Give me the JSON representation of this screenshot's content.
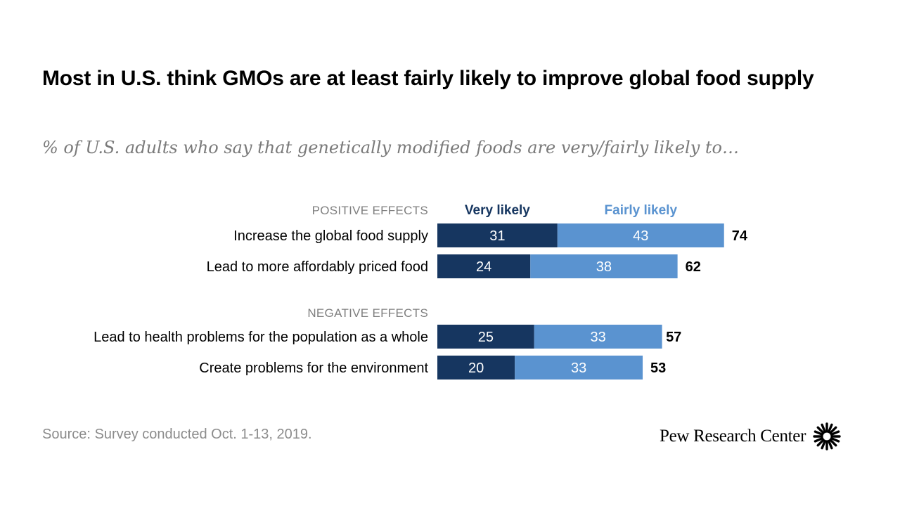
{
  "title": "Most in U.S. think GMOs are at least fairly likely to improve global food supply",
  "subtitle": "% of U.S. adults who say that genetically modified foods are very/fairly likely to…",
  "source": "Source: Survey conducted Oct. 1-13, 2019.",
  "logo": {
    "text": "Pew Research Center",
    "icon": "pew-sunburst-icon"
  },
  "colors": {
    "very": "#163660",
    "fairly": "#5a93d0",
    "section": "#7f7f7f",
    "label": "#000000"
  },
  "chart_data": {
    "type": "bar",
    "orientation": "horizontal",
    "stacked": true,
    "series": [
      {
        "name": "Very likely"
      },
      {
        "name": "Fairly likely"
      }
    ],
    "groups": [
      {
        "label": "POSITIVE EFFECTS",
        "rows": [
          {
            "label": "Increase the global food supply",
            "values": [
              31,
              43
            ],
            "total": 74
          },
          {
            "label": "Lead to more affordably priced food",
            "values": [
              24,
              38
            ],
            "total": 62
          }
        ]
      },
      {
        "label": "NEGATIVE EFFECTS",
        "rows": [
          {
            "label": "Lead to health problems for the population as a whole",
            "values": [
              25,
              33
            ],
            "total": 57
          },
          {
            "label": "Create problems for the environment",
            "values": [
              20,
              33
            ],
            "total": 53
          }
        ]
      }
    ],
    "xlim": [
      0,
      100
    ],
    "grid": false,
    "legend": "top"
  }
}
